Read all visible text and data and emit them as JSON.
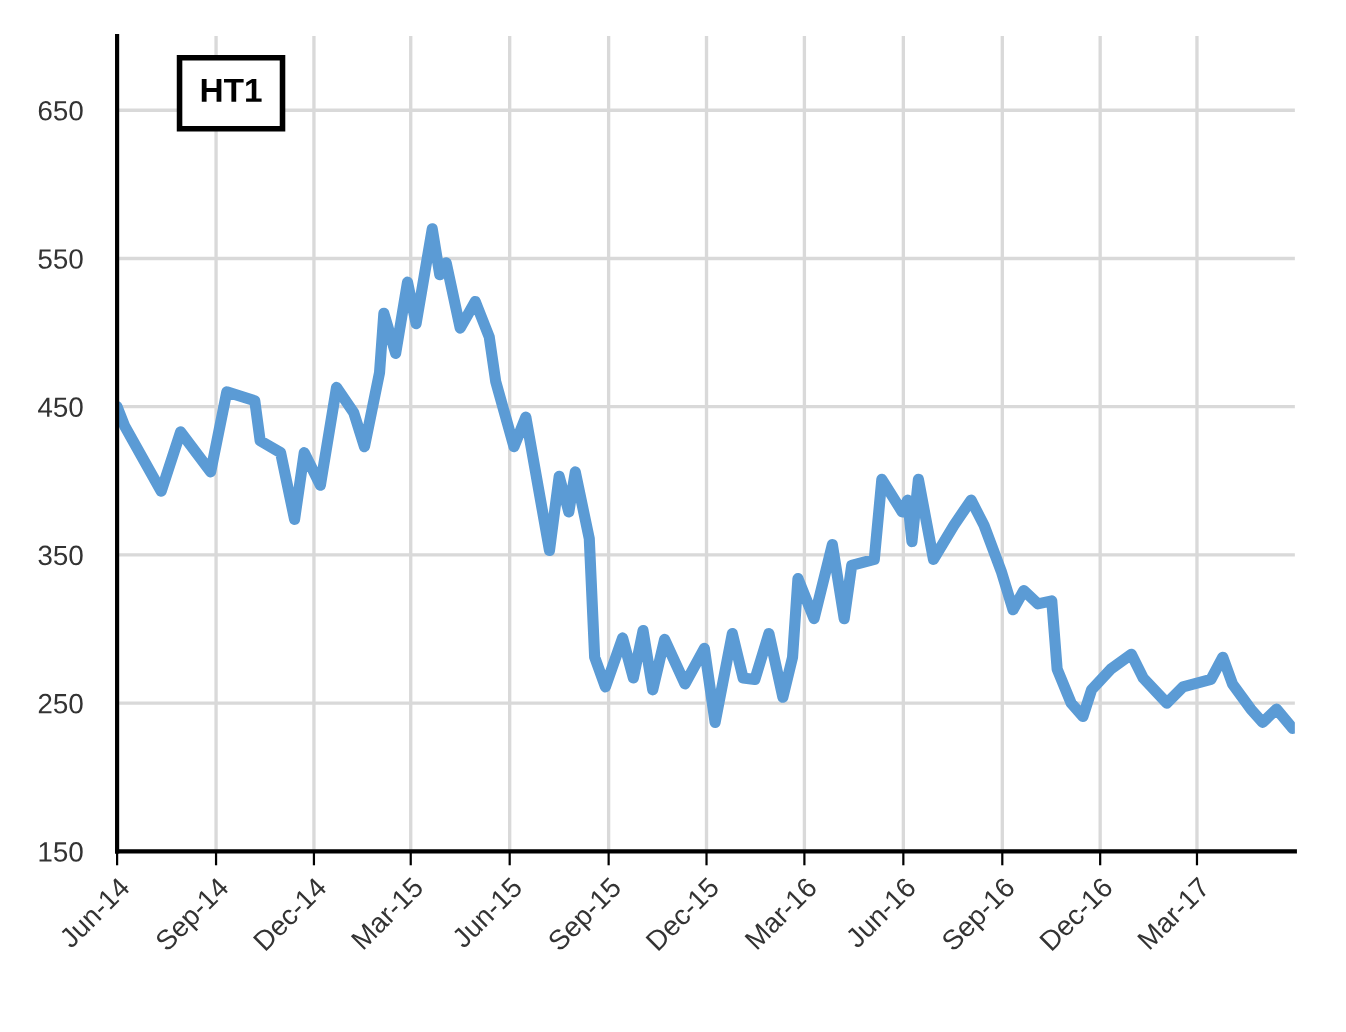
{
  "chart_data": {
    "type": "line",
    "title": "HT1",
    "grid": true,
    "legend": false,
    "x": [
      "2014-06-01",
      "2014-06-08",
      "2014-07-12",
      "2014-07-30",
      "2014-08-27",
      "2014-09-11",
      "2014-10-07",
      "2014-10-12",
      "2014-10-31",
      "2014-11-13",
      "2014-11-22",
      "2014-12-07",
      "2014-12-22",
      "2015-01-07",
      "2015-01-17",
      "2015-01-31",
      "2015-02-04",
      "2015-02-15",
      "2015-02-26",
      "2015-03-06",
      "2015-03-21",
      "2015-03-28",
      "2015-04-03",
      "2015-04-16",
      "2015-04-30",
      "2015-05-13",
      "2015-05-19",
      "2015-06-05",
      "2015-06-16",
      "2015-07-08",
      "2015-07-17",
      "2015-07-26",
      "2015-08-01",
      "2015-08-14",
      "2015-08-19",
      "2015-08-29",
      "2015-09-14",
      "2015-09-24",
      "2015-10-03",
      "2015-10-12",
      "2015-10-23",
      "2015-11-11",
      "2015-11-29",
      "2015-12-09",
      "2015-12-25",
      "2016-01-04",
      "2016-01-15",
      "2016-01-28",
      "2016-02-10",
      "2016-02-19",
      "2016-02-24",
      "2016-03-10",
      "2016-03-27",
      "2016-04-07",
      "2016-04-14",
      "2016-05-05",
      "2016-05-12",
      "2016-05-31",
      "2016-06-05",
      "2016-06-09",
      "2016-06-15",
      "2016-06-29",
      "2016-07-18",
      "2016-08-03",
      "2016-08-15",
      "2016-08-31",
      "2016-09-11",
      "2016-09-21",
      "2016-10-04",
      "2016-10-17",
      "2016-10-22",
      "2016-11-04",
      "2016-11-15",
      "2016-11-23",
      "2016-12-11",
      "2016-12-30",
      "2017-01-10",
      "2017-02-01",
      "2017-02-16",
      "2017-03-14",
      "2017-03-25",
      "2017-04-03",
      "2017-04-20",
      "2017-05-01",
      "2017-05-14",
      "2017-05-29"
    ],
    "series": [
      {
        "color": "#5b9bd5",
        "values": [
          450,
          437,
          393,
          433,
          406,
          460,
          454,
          427,
          419,
          374,
          419,
          397,
          463,
          446,
          423,
          473,
          513,
          486,
          534,
          506,
          570,
          539,
          547,
          503,
          521,
          497,
          467,
          423,
          443,
          353,
          403,
          379,
          406,
          361,
          281,
          261,
          294,
          267,
          299,
          259,
          293,
          263,
          287,
          237,
          297,
          267,
          266,
          297,
          254,
          281,
          334,
          307,
          357,
          307,
          343,
          347,
          401,
          379,
          387,
          359,
          401,
          347,
          370,
          387,
          370,
          339,
          313,
          326,
          317,
          319,
          273,
          250,
          241,
          259,
          273,
          283,
          267,
          250,
          261,
          266,
          281,
          263,
          246,
          237,
          246,
          233
        ]
      }
    ],
    "xlim": [
      "2014-06-01",
      "2017-05-31"
    ],
    "xticks": [
      {
        "value": "2014-06-01",
        "label": "Jun-14"
      },
      {
        "value": "2014-09-01",
        "label": "Sep-14"
      },
      {
        "value": "2014-12-01",
        "label": "Dec-14"
      },
      {
        "value": "2015-03-01",
        "label": "Mar-15"
      },
      {
        "value": "2015-06-01",
        "label": "Jun-15"
      },
      {
        "value": "2015-09-01",
        "label": "Sep-15"
      },
      {
        "value": "2015-12-01",
        "label": "Dec-15"
      },
      {
        "value": "2016-03-01",
        "label": "Mar-16"
      },
      {
        "value": "2016-06-01",
        "label": "Jun-16"
      },
      {
        "value": "2016-09-01",
        "label": "Sep-16"
      },
      {
        "value": "2016-12-01",
        "label": "Dec-16"
      },
      {
        "value": "2017-03-01",
        "label": "Mar-17"
      }
    ],
    "ylim": [
      150,
      700
    ],
    "yticks": [
      150,
      250,
      350,
      450,
      550,
      650
    ]
  }
}
